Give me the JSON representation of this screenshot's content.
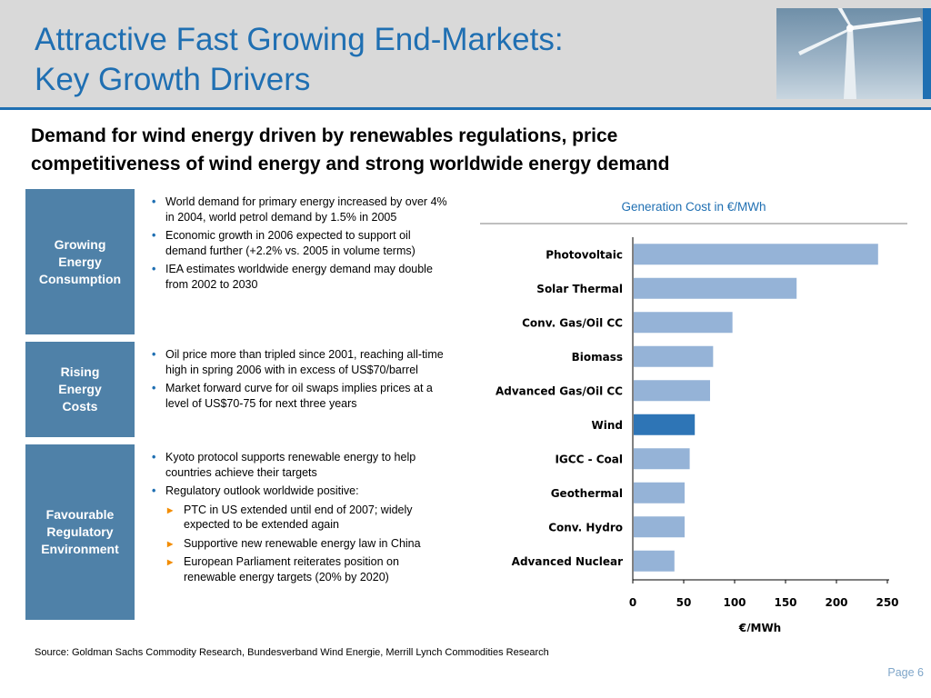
{
  "header": {
    "title_line1": "Attractive Fast Growing End-Markets:",
    "title_line2": "Key Growth Drivers"
  },
  "subtitle_line1": "Demand for wind energy driven by renewables regulations, price",
  "subtitle_line2": "competitiveness of wind energy and strong worldwide energy demand",
  "sections": [
    {
      "label_lines": [
        "Growing",
        "Energy",
        "Consumption"
      ],
      "bullets": [
        "World demand for primary energy increased by over 4% in 2004, world petrol demand by 1.5% in 2005",
        "Economic growth in 2006 expected to support oil demand further (+2.2% vs. 2005 in volume terms)",
        "IEA estimates worldwide energy demand may double from 2002 to 2030"
      ]
    },
    {
      "label_lines": [
        "Rising",
        "Energy",
        "Costs"
      ],
      "bullets": [
        "Oil price more than tripled since 2001, reaching all-time high in spring 2006 with in excess of US$70/barrel",
        "Market forward curve for oil swaps implies prices at a level of US$70-75 for next three years"
      ]
    },
    {
      "label_lines": [
        "Favourable",
        "Regulatory",
        "Environment"
      ],
      "bullets": [
        "Kyoto protocol supports renewable energy to help countries achieve their targets",
        "Regulatory outlook worldwide positive:"
      ],
      "sub_bullets": [
        "PTC in US extended until end of 2007; widely expected to be extended again",
        "Supportive new renewable energy law in China",
        "European Parliament reiterates position on renewable energy targets (20% by 2020)"
      ]
    }
  ],
  "chart_data": {
    "type": "bar",
    "orientation": "horizontal",
    "title": "Generation Cost in €/MWh",
    "xlabel": "€/MWh",
    "categories": [
      "Photovoltaic",
      "Solar Thermal",
      "Conv. Gas/Oil CC",
      "Biomass",
      "Advanced Gas/Oil CC",
      "Wind",
      "IGCC - Coal",
      "Geothermal",
      "Conv. Hydro",
      "Advanced Nuclear"
    ],
    "values": [
      240,
      160,
      97,
      78,
      75,
      60,
      55,
      50,
      50,
      40
    ],
    "highlight": "Wind",
    "xlim": [
      0,
      250
    ],
    "ticks": [
      0,
      50,
      100,
      150,
      200,
      250
    ],
    "colors": {
      "bar": "#95b3d7",
      "highlight": "#2e75b6"
    }
  },
  "source": "Source: Goldman Sachs Commodity Research, Bundesverband Wind Energie, Merrill Lynch Commodities Research",
  "page": "Page 6"
}
